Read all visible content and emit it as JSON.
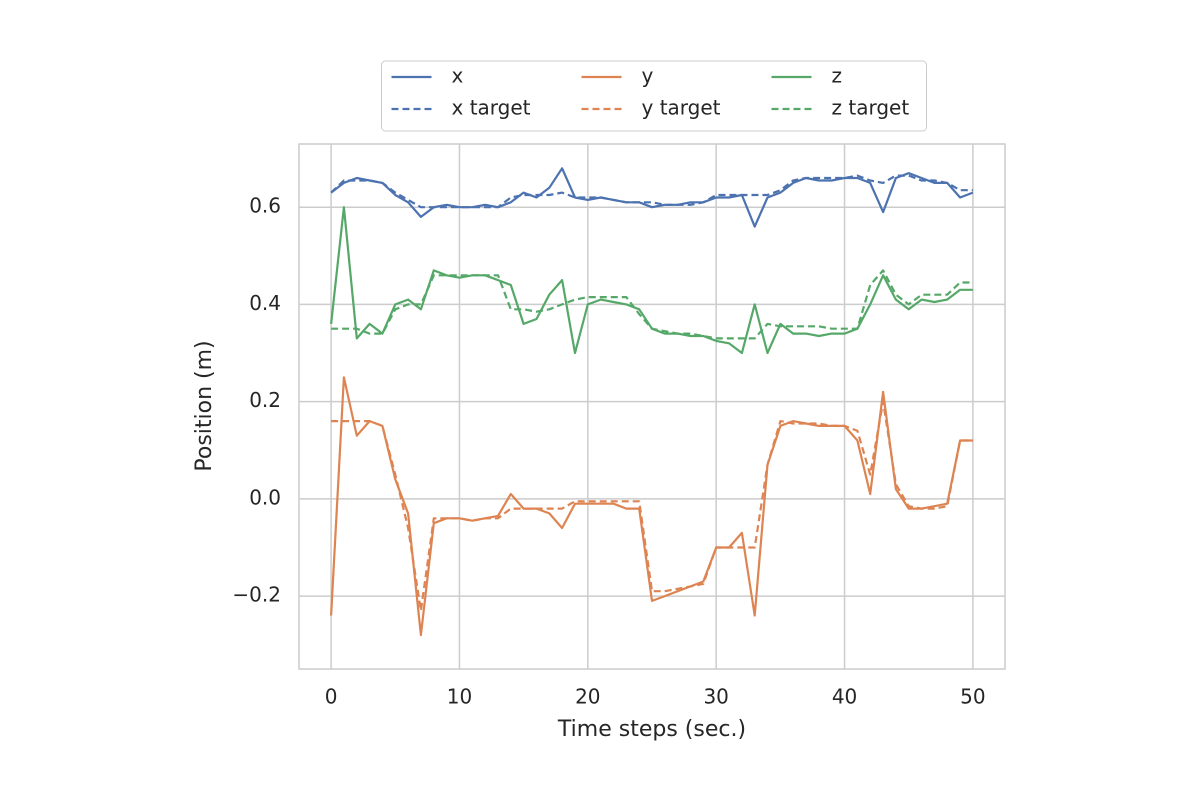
{
  "chart_data": {
    "type": "line",
    "x_label": "Time steps (sec.)",
    "y_label": "Position (m)",
    "x": [
      0,
      1,
      2,
      3,
      4,
      5,
      6,
      7,
      8,
      9,
      10,
      11,
      12,
      13,
      14,
      15,
      16,
      17,
      18,
      19,
      20,
      21,
      22,
      23,
      24,
      25,
      26,
      27,
      28,
      29,
      30,
      31,
      32,
      33,
      34,
      35,
      36,
      37,
      38,
      39,
      40,
      41,
      42,
      43,
      44,
      45,
      46,
      47,
      48,
      49,
      50
    ],
    "series": [
      {
        "name": "x",
        "color": "#4c72b0",
        "linestyle": "solid",
        "values": [
          0.63,
          0.65,
          0.66,
          0.655,
          0.65,
          0.625,
          0.61,
          0.58,
          0.6,
          0.605,
          0.6,
          0.6,
          0.605,
          0.6,
          0.61,
          0.63,
          0.62,
          0.64,
          0.68,
          0.62,
          0.615,
          0.62,
          0.615,
          0.61,
          0.61,
          0.6,
          0.605,
          0.605,
          0.61,
          0.61,
          0.62,
          0.62,
          0.625,
          0.56,
          0.62,
          0.63,
          0.65,
          0.66,
          0.655,
          0.655,
          0.66,
          0.66,
          0.65,
          0.59,
          0.66,
          0.67,
          0.66,
          0.65,
          0.65,
          0.62,
          0.63
        ]
      },
      {
        "name": "x target",
        "color": "#4c72b0",
        "linestyle": "dashed",
        "values": [
          0.63,
          0.655,
          0.655,
          0.655,
          0.65,
          0.63,
          0.615,
          0.6,
          0.6,
          0.6,
          0.6,
          0.6,
          0.6,
          0.6,
          0.62,
          0.625,
          0.625,
          0.625,
          0.63,
          0.62,
          0.62,
          0.62,
          0.615,
          0.61,
          0.61,
          0.61,
          0.605,
          0.605,
          0.605,
          0.61,
          0.625,
          0.625,
          0.625,
          0.625,
          0.625,
          0.635,
          0.655,
          0.66,
          0.66,
          0.66,
          0.66,
          0.665,
          0.655,
          0.65,
          0.665,
          0.665,
          0.655,
          0.655,
          0.65,
          0.635,
          0.635
        ]
      },
      {
        "name": "y",
        "color": "#dd8452",
        "linestyle": "solid",
        "values": [
          -0.24,
          0.25,
          0.13,
          0.16,
          0.15,
          0.04,
          -0.03,
          -0.28,
          -0.05,
          -0.04,
          -0.04,
          -0.045,
          -0.04,
          -0.035,
          0.01,
          -0.02,
          -0.02,
          -0.03,
          -0.06,
          -0.01,
          -0.01,
          -0.01,
          -0.01,
          -0.02,
          -0.02,
          -0.21,
          -0.2,
          -0.19,
          -0.18,
          -0.17,
          -0.1,
          -0.1,
          -0.07,
          -0.24,
          0.07,
          0.15,
          0.16,
          0.155,
          0.15,
          0.15,
          0.15,
          0.12,
          0.01,
          0.22,
          0.02,
          -0.02,
          -0.02,
          -0.015,
          -0.01,
          0.12,
          0.12
        ]
      },
      {
        "name": "y target",
        "color": "#dd8452",
        "linestyle": "dashed",
        "values": [
          0.16,
          0.16,
          0.16,
          0.16,
          0.15,
          0.05,
          -0.06,
          -0.23,
          -0.04,
          -0.04,
          -0.04,
          -0.045,
          -0.04,
          -0.04,
          -0.02,
          -0.02,
          -0.02,
          -0.02,
          -0.02,
          -0.005,
          -0.005,
          -0.005,
          -0.005,
          -0.005,
          -0.005,
          -0.19,
          -0.19,
          -0.185,
          -0.18,
          -0.175,
          -0.1,
          -0.1,
          -0.1,
          -0.1,
          0.07,
          0.16,
          0.155,
          0.155,
          0.155,
          0.15,
          0.15,
          0.14,
          0.05,
          0.2,
          0.03,
          -0.015,
          -0.02,
          -0.02,
          -0.015,
          0.12,
          0.12
        ]
      },
      {
        "name": "z",
        "color": "#55a868",
        "linestyle": "solid",
        "values": [
          0.36,
          0.6,
          0.33,
          0.36,
          0.34,
          0.4,
          0.41,
          0.39,
          0.47,
          0.46,
          0.455,
          0.46,
          0.46,
          0.45,
          0.44,
          0.36,
          0.37,
          0.42,
          0.45,
          0.3,
          0.4,
          0.41,
          0.405,
          0.4,
          0.39,
          0.35,
          0.34,
          0.34,
          0.335,
          0.335,
          0.325,
          0.32,
          0.3,
          0.4,
          0.3,
          0.36,
          0.34,
          0.34,
          0.335,
          0.34,
          0.34,
          0.35,
          0.4,
          0.46,
          0.41,
          0.39,
          0.41,
          0.405,
          0.41,
          0.43,
          0.43
        ]
      },
      {
        "name": "z target",
        "color": "#55a868",
        "linestyle": "dashed",
        "values": [
          0.35,
          0.35,
          0.35,
          0.34,
          0.34,
          0.39,
          0.4,
          0.4,
          0.46,
          0.46,
          0.46,
          0.46,
          0.46,
          0.46,
          0.39,
          0.39,
          0.385,
          0.39,
          0.4,
          0.41,
          0.415,
          0.415,
          0.415,
          0.415,
          0.38,
          0.35,
          0.345,
          0.34,
          0.34,
          0.335,
          0.33,
          0.33,
          0.33,
          0.33,
          0.36,
          0.355,
          0.355,
          0.355,
          0.355,
          0.35,
          0.35,
          0.35,
          0.44,
          0.47,
          0.42,
          0.4,
          0.42,
          0.42,
          0.42,
          0.445,
          0.445
        ]
      }
    ],
    "xlim": [
      -2.5,
      52.5
    ],
    "ylim": [
      -0.35,
      0.73
    ],
    "xticks": [
      0,
      10,
      20,
      30,
      40,
      50
    ],
    "yticks": [
      {
        "value": -0.2,
        "label": "−0.2"
      },
      {
        "value": 0,
        "label": "0.0"
      },
      0.2,
      0.4,
      0.6
    ],
    "grid": true,
    "legend": "upper center"
  }
}
